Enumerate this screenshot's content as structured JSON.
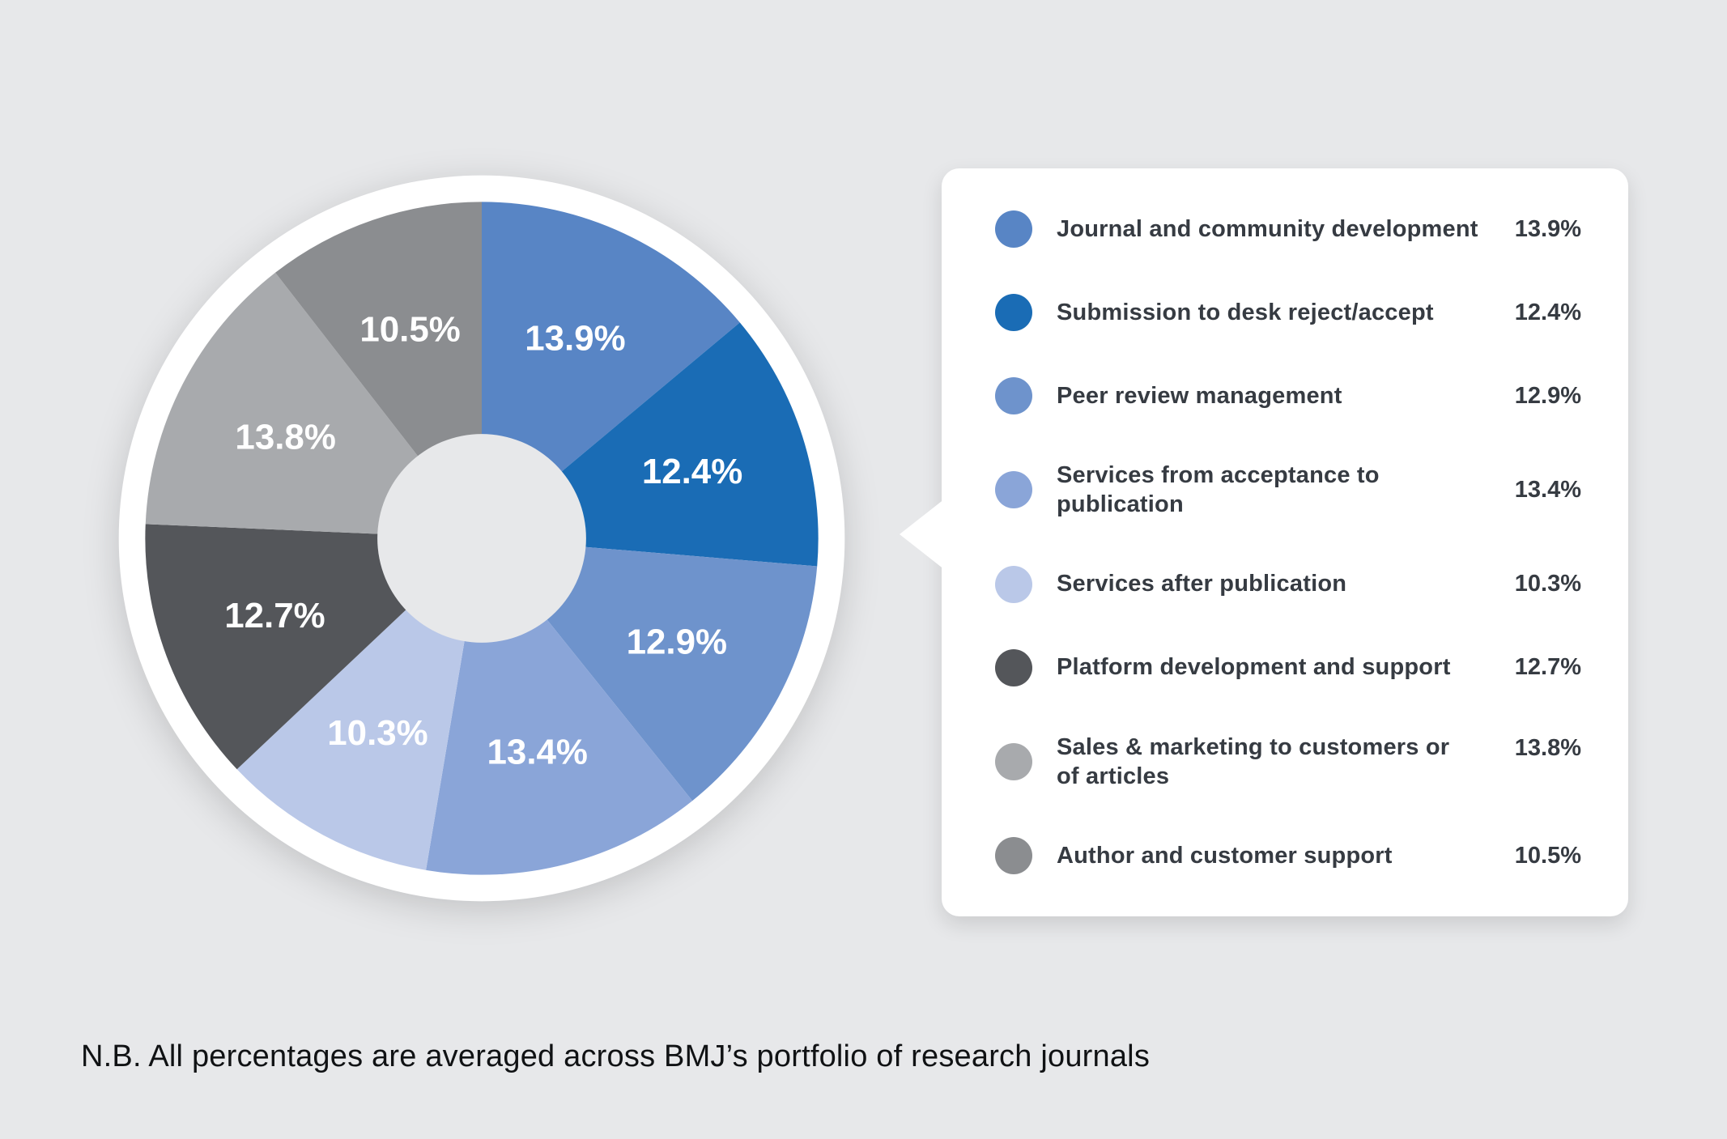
{
  "page": {
    "background": "#e7e8ea"
  },
  "chart_data": {
    "type": "pie",
    "subtype": "donut",
    "direction": "clockwise",
    "start_angle_deg": 0,
    "hole_ratio": 0.31,
    "legend_position": "right",
    "segments": [
      {
        "label": "Journal and community development",
        "value": 13.9,
        "display": "13.9%",
        "color": "#5885c5"
      },
      {
        "label": "Submission to desk reject/accept",
        "value": 12.4,
        "display": "12.4%",
        "color": "#1a6cb5"
      },
      {
        "label": "Peer review management",
        "value": 12.9,
        "display": "12.9%",
        "color": "#6e93cc"
      },
      {
        "label": "Services from acceptance to publication",
        "value": 13.4,
        "display": "13.4%",
        "color": "#8aa5d8"
      },
      {
        "label": "Services after publication",
        "value": 10.3,
        "display": "10.3%",
        "color": "#bac8e8"
      },
      {
        "label": "Platform development and support",
        "value": 12.7,
        "display": "12.7%",
        "color": "#54565a"
      },
      {
        "label": "Sales & marketing to customers or of articles",
        "value": 13.8,
        "display": "13.8%",
        "color": "#a8aaad"
      },
      {
        "label": "Author and customer support",
        "value": 10.5,
        "display": "10.5%",
        "color": "#8b8d90"
      }
    ],
    "note": "N.B. All percentages are averaged across BMJ’s portfolio of research journals"
  },
  "legend": {
    "items": [
      {
        "label": "Journal and community development",
        "label2": "",
        "percent": "13.9%",
        "color": "#5885c5"
      },
      {
        "label": "Submission to desk reject/accept",
        "label2": "",
        "percent": "12.4%",
        "color": "#1a6cb5"
      },
      {
        "label": "Peer review management",
        "label2": "",
        "percent": "12.9%",
        "color": "#6e93cc"
      },
      {
        "label": "Services from acceptance to publication",
        "label2": "",
        "percent": "13.4%",
        "color": "#8aa5d8"
      },
      {
        "label": "Services after publication",
        "label2": "",
        "percent": "10.3%",
        "color": "#bac8e8"
      },
      {
        "label": "Platform development and support",
        "label2": "",
        "percent": "12.7%",
        "color": "#54565a"
      },
      {
        "label": "Sales & marketing to customers or",
        "label2": "of articles",
        "percent": "13.8%",
        "color": "#a8aaad"
      },
      {
        "label": "Author and customer support",
        "label2": "",
        "percent": "10.5%",
        "color": "#8b8d90"
      }
    ]
  },
  "footer": {
    "note": "N.B. All percentages are averaged across BMJ’s portfolio of research journals"
  }
}
